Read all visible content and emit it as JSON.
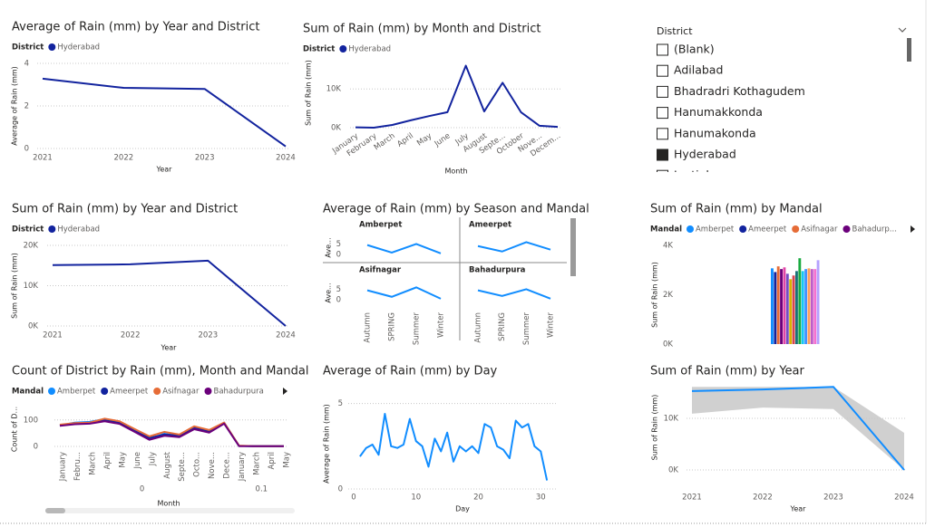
{
  "chart_data": [
    {
      "type": "line",
      "title": "Average of Rain (mm) by Year and District",
      "legend_title": "District",
      "series": [
        {
          "name": "Hyderabad",
          "color": "#12239E",
          "values": [
            3.28,
            2.85,
            2.8,
            0.1
          ]
        }
      ],
      "x": [
        2021,
        2022,
        2023,
        2024
      ],
      "xlim": [
        2021,
        2024
      ],
      "xticks": [
        2021,
        2022,
        2023,
        2024
      ],
      "ylim": [
        0,
        4
      ],
      "yticks": [
        0,
        2,
        4
      ],
      "ylabel": "Average of Rain (mm)",
      "xlabel": "Year",
      "grid": true
    },
    {
      "type": "line",
      "title": "Sum of Rain (mm) by Month and District",
      "legend_title": "District",
      "series": [
        {
          "name": "Hyderabad",
          "color": "#12239E",
          "values": [
            100,
            0,
            700,
            1900,
            3000,
            4000,
            16000,
            4200,
            11600,
            4000,
            500,
            200
          ]
        }
      ],
      "categories": [
        "January",
        "February",
        "March",
        "April",
        "May",
        "June",
        "July",
        "August",
        "Septe...",
        "October",
        "Nove...",
        "Decem..."
      ],
      "ylim": [
        0,
        18000
      ],
      "yticks": [
        {
          "value": 0,
          "label": "0K"
        },
        {
          "value": 10000,
          "label": "10K"
        }
      ],
      "ylabel": "Sum of Rain (mm)",
      "xlabel": "Month",
      "grid": true
    },
    {
      "type": "line",
      "title": "Sum of Rain (mm) by Year and District",
      "legend_title": "District",
      "series": [
        {
          "name": "Hyderabad",
          "color": "#12239E",
          "values": [
            15100,
            15300,
            16200,
            0
          ]
        }
      ],
      "x": [
        2021,
        2022,
        2023,
        2024
      ],
      "xlim": [
        2021,
        2024
      ],
      "xticks": [
        2021,
        2022,
        2023,
        2024
      ],
      "ylim": [
        0,
        20000
      ],
      "yticks": [
        {
          "value": 0,
          "label": "0K"
        },
        {
          "value": 10000,
          "label": "10K"
        },
        {
          "value": 20000,
          "label": "20K"
        }
      ],
      "ylabel": "Sum of Rain (mm)",
      "xlabel": "Year",
      "grid": true
    },
    {
      "type": "line",
      "facets": true,
      "title": "Average of Rain (mm) by Season and Mandal",
      "categories": [
        "Autumn",
        "SPRING",
        "Summer",
        "Winter"
      ],
      "series": [
        {
          "name": "Amberpet",
          "color": "#118DFF",
          "values": [
            4.5,
            0.9,
            5,
            0.5
          ]
        },
        {
          "name": "Ameerpet",
          "color": "#118DFF",
          "values": [
            4,
            1.4,
            5.9,
            2.3
          ]
        },
        {
          "name": "Asifnagar",
          "color": "#118DFF",
          "values": [
            4.5,
            1.4,
            5.9,
            0.5
          ]
        },
        {
          "name": "Bahadurpura",
          "color": "#118DFF",
          "values": [
            4.5,
            1.8,
            5,
            0.5
          ]
        }
      ],
      "ylim": [
        0,
        6.5
      ],
      "yticks": [
        0,
        5
      ],
      "ylabel": "Ave..."
    },
    {
      "type": "bar",
      "title": "Sum of Rain (mm) by Mandal",
      "legend_title": "Mandal",
      "series": [
        {
          "name": "Amberpet",
          "color": "#118DFF",
          "values": [
            3070
          ]
        },
        {
          "name": "Ameerpet",
          "color": "#12239E",
          "values": [
            2920
          ]
        },
        {
          "name": "Asifnagar",
          "color": "#E66C37",
          "values": [
            3150
          ]
        },
        {
          "name": "Bahadurp...",
          "color": "#6B007B",
          "values": [
            3040
          ]
        },
        {
          "color": "#E044A7",
          "values": [
            3110
          ]
        },
        {
          "color": "#744EC2",
          "values": [
            2850
          ]
        },
        {
          "color": "#D9B300",
          "values": [
            2630
          ]
        },
        {
          "color": "#D64550",
          "values": [
            2780
          ]
        },
        {
          "color": "#197278",
          "values": [
            2960
          ]
        },
        {
          "color": "#1AAB40",
          "values": [
            3480
          ]
        },
        {
          "color": "#15C6F4",
          "values": [
            2960
          ]
        },
        {
          "color": "#4092FF",
          "values": [
            3040
          ]
        },
        {
          "color": "#FFA058",
          "values": [
            3070
          ]
        },
        {
          "color": "#BE5DC9",
          "values": [
            3040
          ]
        },
        {
          "color": "#F472D0",
          "values": [
            3040
          ]
        },
        {
          "color": "#B5A1FF",
          "values": [
            3400
          ]
        }
      ],
      "ylim": [
        0,
        4000
      ],
      "yticks": [
        {
          "value": 0,
          "label": "0K"
        },
        {
          "value": 2000,
          "label": "2K"
        },
        {
          "value": 4000,
          "label": "4K"
        }
      ],
      "ylabel": "Sum of Rain (mm)"
    },
    {
      "type": "line",
      "title": "Count of District by Rain (mm), Month and Mandal",
      "legend_title": "Mandal",
      "category_groups": [
        {
          "name": "0",
          "categories": [
            "January",
            "Febru...",
            "March",
            "April",
            "May",
            "June",
            "July",
            "August",
            "Septe...",
            "Octo...",
            "Nove...",
            "Dece..."
          ]
        },
        {
          "name": "0.1",
          "categories": [
            "January",
            "March",
            "April",
            "May"
          ]
        }
      ],
      "series": [
        {
          "name": "Amberpet",
          "color": "#118DFF",
          "values": [
            79,
            90,
            93,
            103,
            93,
            62,
            28,
            48,
            38,
            72,
            59,
            90,
            2,
            1,
            1,
            1
          ]
        },
        {
          "name": "Ameerpet",
          "color": "#12239E",
          "values": [
            80,
            86,
            88,
            98,
            90,
            58,
            32,
            45,
            42,
            70,
            56,
            88,
            2,
            1,
            1,
            1
          ]
        },
        {
          "name": "Asifnagar",
          "color": "#E66C37",
          "values": [
            82,
            88,
            90,
            105,
            95,
            66,
            38,
            55,
            45,
            76,
            62,
            90,
            3,
            1,
            1,
            1
          ]
        },
        {
          "name": "Bahadurpura",
          "color": "#6B007B",
          "values": [
            78,
            84,
            86,
            95,
            85,
            55,
            25,
            40,
            35,
            65,
            52,
            86,
            1,
            1,
            1,
            1
          ]
        }
      ],
      "ylim": [
        0,
        130
      ],
      "yticks": [
        0,
        100
      ],
      "ylabel": "Count of D...",
      "xlabel": "Month",
      "grid": true
    },
    {
      "type": "line",
      "title": "Average of Rain (mm) by Day",
      "series": [
        {
          "color": "#118DFF",
          "values": [
            1.9,
            2.4,
            2.6,
            2.0,
            4.4,
            2.5,
            2.4,
            2.6,
            4.1,
            2.8,
            2.5,
            1.3,
            2.95,
            2.2,
            3.3,
            1.6,
            2.5,
            2.2,
            2.5,
            2.1,
            3.8,
            3.6,
            2.5,
            2.3,
            1.8,
            4.0,
            3.6,
            3.8,
            2.5,
            2.2,
            0.5
          ]
        }
      ],
      "x": [
        1,
        2,
        3,
        4,
        5,
        6,
        7,
        8,
        9,
        10,
        11,
        12,
        13,
        14,
        15,
        16,
        17,
        18,
        19,
        20,
        21,
        22,
        23,
        24,
        25,
        26,
        27,
        28,
        29,
        30,
        31
      ],
      "xlim": [
        0,
        32
      ],
      "xticks": [
        0,
        10,
        20,
        30
      ],
      "ylim": [
        0,
        5.3
      ],
      "yticks": [
        0,
        5
      ],
      "ylabel": "Average of Rain (mm)",
      "xlabel": "Day",
      "grid": true
    },
    {
      "type": "line",
      "title": "Sum of Rain (mm) by Year",
      "series": [
        {
          "color": "#118DFF",
          "values": [
            15300,
            15600,
            16100,
            0
          ]
        }
      ],
      "band": {
        "color": "#C8C8C8",
        "upper": [
          16100,
          16100,
          16100,
          7200
        ],
        "lower": [
          10900,
          12100,
          11800,
          0
        ]
      },
      "x": [
        2021,
        2022,
        2023,
        2024
      ],
      "xlim": [
        2021,
        2024
      ],
      "xticks": [
        2021,
        2022,
        2023,
        2024
      ],
      "ylim": [
        0,
        16500
      ],
      "yticks": [
        {
          "value": 0,
          "label": "0K"
        },
        {
          "value": 10000,
          "label": "10K"
        }
      ],
      "ylabel": "Sum of Rain (mm)",
      "xlabel": "Year",
      "grid": true
    }
  ],
  "slicer": {
    "title": "District",
    "items": [
      {
        "label": "(Blank)",
        "checked": false
      },
      {
        "label": "Adilabad",
        "checked": false
      },
      {
        "label": "Bhadradri Kothagudem",
        "checked": false
      },
      {
        "label": "Hanumakkonda",
        "checked": false
      },
      {
        "label": "Hanumakonda",
        "checked": false
      },
      {
        "label": "Hyderabad",
        "checked": true
      },
      {
        "label": "Jagtial",
        "checked": false
      }
    ]
  }
}
